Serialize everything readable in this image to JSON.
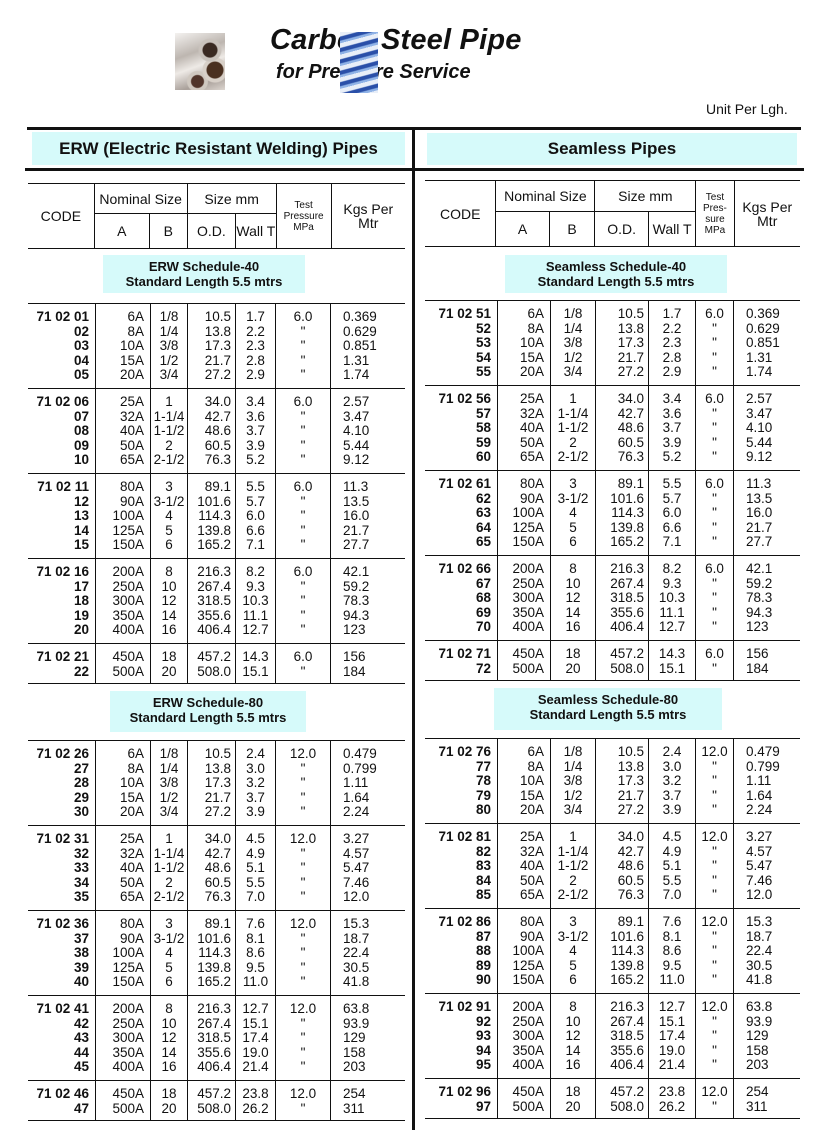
{
  "header": {
    "title": "Carbon Steel Pipe",
    "subtitle": "for Pressure Service",
    "unit": "Unit Per Lgh."
  },
  "columns": {
    "code": "CODE",
    "nominal": "Nominal Size",
    "a": "A",
    "b": "B",
    "size": "Size mm",
    "od": "O.D.",
    "wall": "Wall T",
    "test_erw": "Test Pressure MPa",
    "test_seamless": "Test Pres- sure MPa",
    "kgs": "Kgs Per Mtr"
  },
  "sizes": [
    [
      "6A",
      "1/8",
      "10.5"
    ],
    [
      "8A",
      "1/4",
      "13.8"
    ],
    [
      "10A",
      "3/8",
      "17.3"
    ],
    [
      "15A",
      "1/2",
      "21.7"
    ],
    [
      "20A",
      "3/4",
      "27.2"
    ],
    [
      "25A",
      "1",
      "34.0"
    ],
    [
      "32A",
      "1-1/4",
      "42.7"
    ],
    [
      "40A",
      "1-1/2",
      "48.6"
    ],
    [
      "50A",
      "2",
      "60.5"
    ],
    [
      "65A",
      "2-1/2",
      "76.3"
    ],
    [
      "80A",
      "3",
      "89.1"
    ],
    [
      "90A",
      "3-1/2",
      "101.6"
    ],
    [
      "100A",
      "4",
      "114.3"
    ],
    [
      "125A",
      "5",
      "139.8"
    ],
    [
      "150A",
      "6",
      "165.2"
    ],
    [
      "200A",
      "8",
      "216.3"
    ],
    [
      "250A",
      "10",
      "267.4"
    ],
    [
      "300A",
      "12",
      "318.5"
    ],
    [
      "350A",
      "14",
      "355.6"
    ],
    [
      "400A",
      "16",
      "406.4"
    ],
    [
      "450A",
      "18",
      "457.2"
    ],
    [
      "500A",
      "20",
      "508.0"
    ]
  ],
  "ditto": "\"",
  "schedules": {
    "sch40": {
      "test": "6.0",
      "wall": [
        "1.7",
        "2.2",
        "2.3",
        "2.8",
        "2.9",
        "3.4",
        "3.6",
        "3.7",
        "3.9",
        "5.2",
        "5.5",
        "5.7",
        "6.0",
        "6.6",
        "7.1",
        "8.2",
        "9.3",
        "10.3",
        "11.1",
        "12.7",
        "14.3",
        "15.1"
      ],
      "kgs": [
        "0.369",
        "0.629",
        "0.851",
        "1.31",
        "1.74",
        "2.57",
        "3.47",
        "4.10",
        "5.44",
        "9.12",
        "11.3",
        "13.5",
        "16.0",
        "21.7",
        "27.7",
        "42.1",
        "59.2",
        "78.3",
        "94.3",
        "123",
        "156",
        "184"
      ]
    },
    "sch80": {
      "test": "12.0",
      "wall": [
        "2.4",
        "3.0",
        "3.2",
        "3.7",
        "3.9",
        "4.5",
        "4.9",
        "5.1",
        "5.5",
        "7.0",
        "7.6",
        "8.1",
        "8.6",
        "9.5",
        "11.0",
        "12.7",
        "15.1",
        "17.4",
        "19.0",
        "21.4",
        "23.8",
        "26.2"
      ],
      "kgs": [
        "0.479",
        "0.799",
        "1.11",
        "1.64",
        "2.24",
        "3.27",
        "4.57",
        "5.47",
        "7.46",
        "12.0",
        "15.3",
        "18.7",
        "22.4",
        "30.5",
        "41.8",
        "63.8",
        "93.9",
        "129",
        "158",
        "203",
        "254",
        "311"
      ]
    }
  },
  "erw": {
    "title": "ERW (Electric Resistant Welding) Pipes",
    "sch40": {
      "label": "ERW Schedule-40",
      "length": "Standard Length 5.5 mtrs",
      "codes": [
        "71 02 01",
        "02",
        "03",
        "04",
        "05",
        "71 02 06",
        "07",
        "08",
        "09",
        "10",
        "71 02 11",
        "12",
        "13",
        "14",
        "15",
        "71 02 16",
        "17",
        "18",
        "19",
        "20",
        "71 02 21",
        "22"
      ]
    },
    "sch80": {
      "label": "ERW Schedule-80",
      "length": "Standard Length 5.5 mtrs",
      "codes": [
        "71 02 26",
        "27",
        "28",
        "29",
        "30",
        "71 02 31",
        "32",
        "33",
        "34",
        "35",
        "71 02 36",
        "37",
        "38",
        "39",
        "40",
        "71 02 41",
        "42",
        "43",
        "44",
        "45",
        "71 02 46",
        "47"
      ]
    }
  },
  "seamless": {
    "title": "Seamless Pipes",
    "sch40": {
      "label": "Seamless Schedule-40",
      "length": "Standard Length 5.5 mtrs",
      "codes": [
        "71 02 51",
        "52",
        "53",
        "54",
        "55",
        "71 02 56",
        "57",
        "58",
        "59",
        "60",
        "71 02 61",
        "62",
        "63",
        "64",
        "65",
        "71 02 66",
        "67",
        "68",
        "69",
        "70",
        "71 02 71",
        "72"
      ]
    },
    "sch80": {
      "label": "Seamless Schedule-80",
      "length": "Standard Length 5.5 mtrs",
      "codes": [
        "71 02 76",
        "77",
        "78",
        "79",
        "80",
        "71 02 81",
        "82",
        "83",
        "84",
        "85",
        "71 02 86",
        "87",
        "88",
        "89",
        "90",
        "71 02 91",
        "92",
        "93",
        "94",
        "95",
        "71 02 96",
        "97"
      ]
    }
  },
  "colors": {
    "section_fill": "#d6fafa",
    "rule": "#111111"
  }
}
